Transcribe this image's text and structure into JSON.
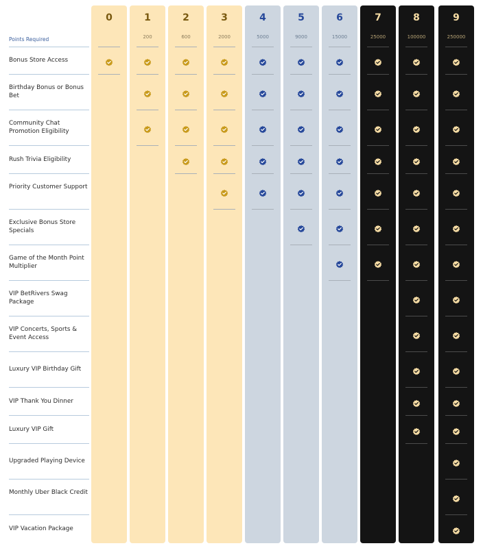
{
  "points_required_label": "Points Required",
  "colors": {
    "gold_col": "#fde6b8",
    "blue_col": "#cdd6e0",
    "black_col": "#141414",
    "gold_check": "#c89a1c",
    "blue_check": "#26489a",
    "black_check": "#f6dca4"
  },
  "tiers": [
    {
      "level": "0",
      "points": "",
      "style": "gold"
    },
    {
      "level": "1",
      "points": "200",
      "style": "gold"
    },
    {
      "level": "2",
      "points": "600",
      "style": "gold"
    },
    {
      "level": "3",
      "points": "2000",
      "style": "gold"
    },
    {
      "level": "4",
      "points": "5000",
      "style": "blue"
    },
    {
      "level": "5",
      "points": "9000",
      "style": "blue"
    },
    {
      "level": "6",
      "points": "15000",
      "style": "blue"
    },
    {
      "level": "7",
      "points": "25000",
      "style": "black"
    },
    {
      "level": "8",
      "points": "100000",
      "style": "black"
    },
    {
      "level": "9",
      "points": "250000",
      "style": "black"
    }
  ],
  "benefits": [
    {
      "label": "Bonus Store Access",
      "min_level": 0
    },
    {
      "label": "Birthday Bonus or Bonus Bet",
      "min_level": 1
    },
    {
      "label": "Community Chat Promotion Eligibility",
      "min_level": 1
    },
    {
      "label": "Rush Trivia Eligibility",
      "min_level": 2
    },
    {
      "label": "Priority Customer Support",
      "min_level": 3
    },
    {
      "label": "Exclusive Bonus Store Specials",
      "min_level": 5
    },
    {
      "label": "Game of the Month Point Multiplier",
      "min_level": 6
    },
    {
      "label": "VIP BetRivers Swag Package",
      "min_level": 8
    },
    {
      "label": "VIP Concerts, Sports & Event Access",
      "min_level": 8
    },
    {
      "label": "Luxury VIP Birthday Gift",
      "min_level": 8
    },
    {
      "label": "VIP Thank You Dinner",
      "min_level": 8
    },
    {
      "label": "Luxury VIP Gift",
      "min_level": 8
    },
    {
      "label": "Upgraded Playing Device",
      "min_level": 9
    },
    {
      "label": "Monthly Uber Black Credit",
      "min_level": 9
    },
    {
      "label": "VIP Vacation Package",
      "min_level": 9
    }
  ]
}
